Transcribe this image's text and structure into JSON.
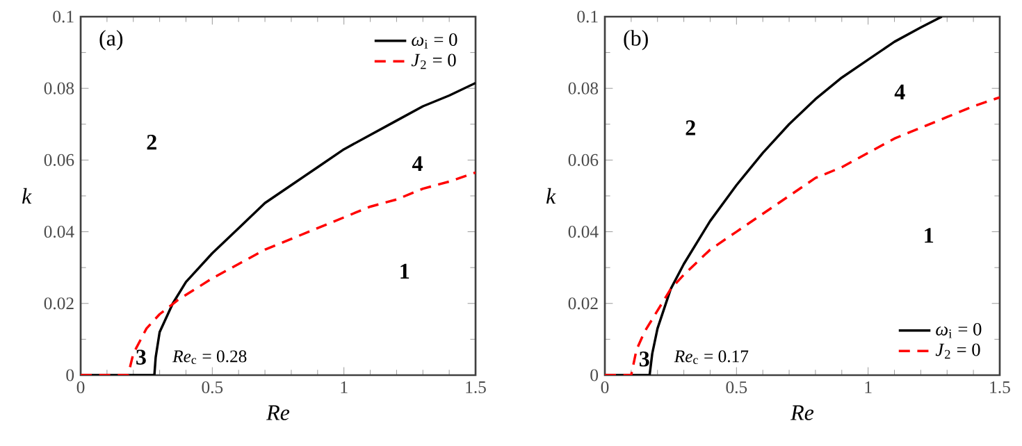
{
  "chart_data": [
    {
      "type": "line",
      "title": "(a)",
      "xlabel": "Re",
      "ylabel": "k",
      "xlim": [
        0,
        1.5
      ],
      "ylim": [
        0,
        0.1
      ],
      "xticks": [
        0,
        0.5,
        1,
        1.5
      ],
      "yticks": [
        0,
        0.02,
        0.04,
        0.06,
        0.08,
        0.1
      ],
      "grid": false,
      "legend": "top right",
      "series": [
        {
          "name": "*ω*$_{i}$ = 0",
          "color": "#000000",
          "line_style": "solid",
          "x": [
            0,
            0.28,
            0.285,
            0.3,
            0.35,
            0.4,
            0.5,
            0.6,
            0.7,
            0.8,
            0.9,
            1.0,
            1.1,
            1.2,
            1.3,
            1.4,
            1.5
          ],
          "values": [
            0,
            0,
            0.005,
            0.012,
            0.02,
            0.026,
            0.034,
            0.041,
            0.048,
            0.053,
            0.058,
            0.063,
            0.067,
            0.071,
            0.075,
            0.078,
            0.0815
          ]
        },
        {
          "name": "*J*$_{2}$ = 0",
          "color": "#ff0000",
          "line_style": "dashed",
          "x": [
            0,
            0.18,
            0.2,
            0.25,
            0.3,
            0.37,
            0.5,
            0.6,
            0.7,
            0.8,
            0.9,
            1.0,
            1.1,
            1.2,
            1.3,
            1.4,
            1.5
          ],
          "values": [
            0,
            0,
            0.006,
            0.013,
            0.017,
            0.021,
            0.027,
            0.031,
            0.035,
            0.038,
            0.041,
            0.044,
            0.047,
            0.049,
            0.052,
            0.054,
            0.0565
          ]
        }
      ],
      "annotations": [
        "*Re*$_{c}$ = 0.28",
        "2",
        "4",
        "1",
        "3"
      ]
    },
    {
      "type": "line",
      "title": "(b)",
      "xlabel": "Re",
      "ylabel": "k",
      "xlim": [
        0,
        1.5
      ],
      "ylim": [
        0,
        0.1
      ],
      "xticks": [
        0,
        0.5,
        1,
        1.5
      ],
      "yticks": [
        0,
        0.02,
        0.04,
        0.06,
        0.08,
        0.1
      ],
      "grid": false,
      "legend": "bottom right",
      "series": [
        {
          "name": "*ω*$_{i}$ = 0",
          "color": "#000000",
          "line_style": "solid",
          "x": [
            0,
            0.17,
            0.18,
            0.2,
            0.25,
            0.3,
            0.4,
            0.5,
            0.6,
            0.7,
            0.8,
            0.9,
            1.0,
            1.1,
            1.2,
            1.28
          ],
          "values": [
            0,
            0,
            0.006,
            0.013,
            0.024,
            0.031,
            0.043,
            0.053,
            0.062,
            0.07,
            0.077,
            0.083,
            0.088,
            0.093,
            0.097,
            0.1
          ]
        },
        {
          "name": "*J*$_{2}$ = 0",
          "color": "#ff0000",
          "line_style": "dashed",
          "x": [
            0,
            0.1,
            0.12,
            0.15,
            0.2,
            0.25,
            0.3,
            0.4,
            0.5,
            0.6,
            0.7,
            0.8,
            0.9,
            1.0,
            1.1,
            1.2,
            1.3,
            1.4,
            1.5
          ],
          "values": [
            0,
            0,
            0.007,
            0.012,
            0.018,
            0.024,
            0.028,
            0.035,
            0.04,
            0.045,
            0.05,
            0.055,
            0.058,
            0.062,
            0.066,
            0.069,
            0.072,
            0.075,
            0.0775
          ]
        }
      ],
      "annotations": [
        "*Re*$_{c}$ = 0.17",
        "2",
        "4",
        "1",
        "3"
      ]
    }
  ]
}
